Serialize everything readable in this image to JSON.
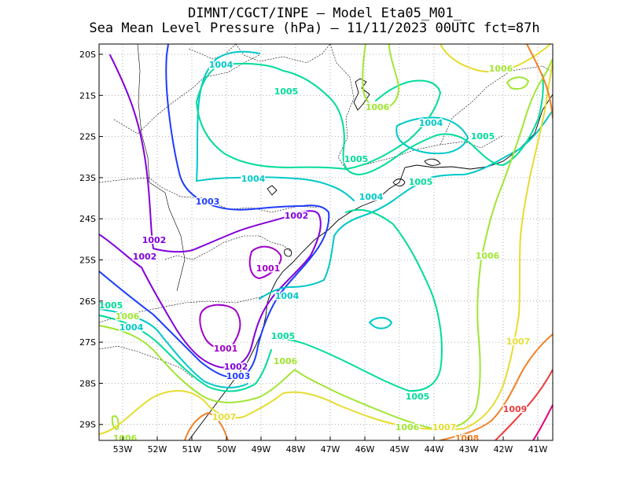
{
  "header": {
    "line1": "DIMNT/CGCT/INPE  –  Model Eta05_M01_",
    "line2": "Sea Mean Level Pressure (hPa) – 11/11/2023 00UTC fct=87h"
  },
  "axes": {
    "lat_ticks": [
      "20S",
      "21S",
      "22S",
      "23S",
      "24S",
      "25S",
      "26S",
      "27S",
      "28S",
      "29S"
    ],
    "lon_ticks": [
      "53W",
      "52W",
      "51W",
      "50W",
      "49W",
      "48W",
      "47W",
      "46W",
      "45W",
      "44W",
      "43W",
      "42W",
      "41W"
    ]
  },
  "colors": {
    "1001": "#a000c8",
    "1002": "#8200dc",
    "1003": "#1e3cff",
    "1004": "#00c8c8",
    "1005": "#00dc9a",
    "1006": "#a0e632",
    "1007": "#e6dc32",
    "1008": "#f08228",
    "1009": "#f03c3c",
    "1010": "#e6007a"
  },
  "chart_data": {
    "type": "contour-map",
    "title": "Sea Mean Level Pressure (hPa)",
    "units": "hPa",
    "lat_range": [
      "20S",
      "29.5S"
    ],
    "lon_range": [
      "53.5W",
      "40.5W"
    ],
    "grid": true,
    "levels": [
      1001,
      1002,
      1003,
      1004,
      1005,
      1006,
      1007,
      1008,
      1009,
      1010
    ],
    "labels": [
      {
        "text": "1004",
        "value": 1004
      },
      {
        "text": "1005",
        "value": 1005
      },
      {
        "text": "1006",
        "value": 1006
      },
      {
        "text": "1006",
        "value": 1006
      },
      {
        "text": "1004",
        "value": 1004
      },
      {
        "text": "1005",
        "value": 1005
      },
      {
        "text": "1005",
        "value": 1005
      },
      {
        "text": "1004",
        "value": 1004
      },
      {
        "text": "1005",
        "value": 1005
      },
      {
        "text": "1003",
        "value": 1003
      },
      {
        "text": "1004",
        "value": 1004
      },
      {
        "text": "1002",
        "value": 1002
      },
      {
        "text": "1002",
        "value": 1002
      },
      {
        "text": "1002",
        "value": 1002
      },
      {
        "text": "1001",
        "value": 1001
      },
      {
        "text": "1006",
        "value": 1006
      },
      {
        "text": "1004",
        "value": 1004
      },
      {
        "text": "1005",
        "value": 1005
      },
      {
        "text": "1006",
        "value": 1006
      },
      {
        "text": "1004",
        "value": 1004
      },
      {
        "text": "1001",
        "value": 1001
      },
      {
        "text": "1002",
        "value": 1002
      },
      {
        "text": "1003",
        "value": 1003
      },
      {
        "text": "1005",
        "value": 1005
      },
      {
        "text": "1006",
        "value": 1006
      },
      {
        "text": "1007",
        "value": 1007
      },
      {
        "text": "1005",
        "value": 1005
      },
      {
        "text": "1006",
        "value": 1006
      },
      {
        "text": "1007",
        "value": 1007
      },
      {
        "text": "1008",
        "value": 1008
      },
      {
        "text": "1009",
        "value": 1009
      },
      {
        "text": "1006",
        "value": 1006
      },
      {
        "text": "1007",
        "value": 1007
      }
    ]
  }
}
